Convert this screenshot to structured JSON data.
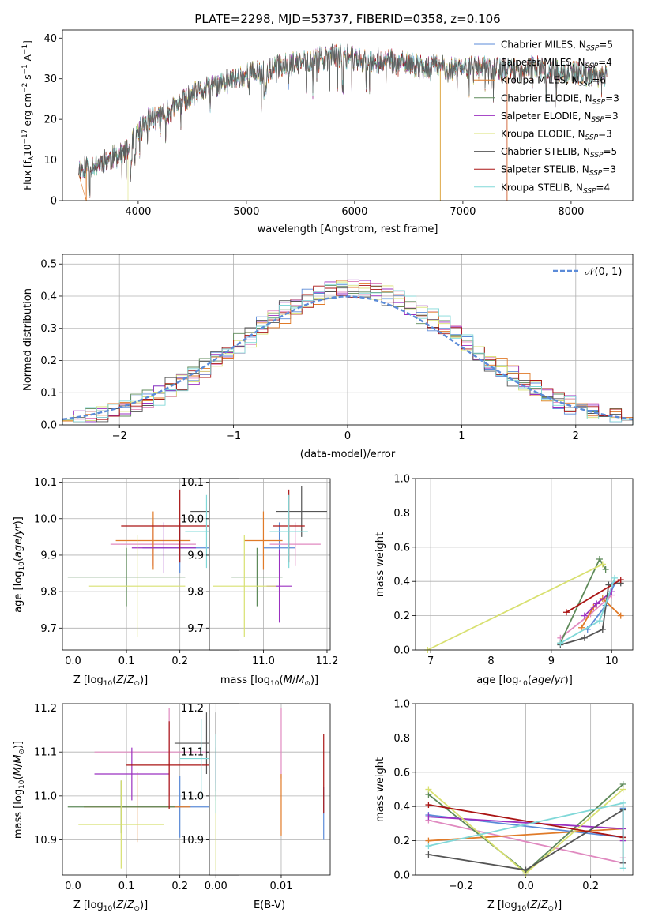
{
  "figure_title": "PLATE=2298, MJD=53737, FIBERID=0358, z=0.106",
  "colors": {
    "chabrier_miles": "#5b8bd8",
    "salpeter_miles": "#e08ac0",
    "kroupa_miles": "#e07a28",
    "chabrier_elodie": "#5e8a5a",
    "salpeter_elodie": "#9b30c0",
    "kroupa_elodie": "#d8e070",
    "chabrier_stelib": "#555555",
    "salpeter_stelib": "#aa1515",
    "kroupa_stelib": "#80d8d8",
    "normal": "#5b8bd8"
  },
  "chart_data": [
    {
      "id": "spectrum",
      "type": "line",
      "title": "PLATE=2298, MJD=53737, FIBERID=0358, z=0.106",
      "xlabel": "wavelength [Angstrom, rest frame]",
      "ylabel": "Flux [fλ10⁻¹⁷ erg cm⁻² s⁻¹ A⁻¹]",
      "xlim": [
        3300,
        8570
      ],
      "ylim": [
        0,
        42
      ],
      "xticks": [
        4000,
        5000,
        6000,
        7000,
        8000
      ],
      "yticks": [
        0,
        10,
        20,
        30,
        40
      ],
      "grid": false,
      "legend_position": "right",
      "legend": [
        "Chabrier MILES, N_SSP=5",
        "Salpeter MILES, N_SSP=4",
        "Kroupa MILES, N_SSP=6",
        "Chabrier ELODIE, N_SSP=3",
        "Salpeter ELODIE, N_SSP=3",
        "Kroupa ELODIE, N_SSP=3",
        "Chabrier STELIB, N_SSP=5",
        "Salpeter STELIB, N_SSP=3",
        "Kroupa STELIB, N_SSP=4"
      ],
      "continuum_x": [
        3450,
        3600,
        3700,
        3800,
        3900,
        4000,
        4100,
        4200,
        4300,
        4400,
        4500,
        4600,
        4700,
        4800,
        4900,
        5000,
        5100,
        5200,
        5300,
        5400,
        5500,
        5600,
        5700,
        5800,
        5900,
        6000,
        6100,
        6200,
        6300,
        6400,
        6500,
        6600,
        6700,
        6800,
        6900,
        7000,
        7100,
        7200,
        7300,
        7400,
        7500,
        7600,
        7700,
        7800,
        7900,
        8000,
        8100,
        8200,
        8330
      ],
      "continuum_y": [
        8,
        9,
        10,
        11,
        12,
        17,
        20,
        21,
        22,
        24,
        26,
        27,
        28,
        29,
        30,
        31,
        31.5,
        32,
        33,
        33.5,
        34,
        34.5,
        35,
        35.5,
        35.5,
        35,
        34.5,
        34.5,
        34.5,
        34,
        33.5,
        33,
        33,
        33,
        32.5,
        33,
        33,
        32.5,
        32.5,
        32.5,
        32,
        32.5,
        32.5,
        32,
        31.5,
        31.5,
        31,
        31,
        31
      ],
      "model_drops": [
        {
          "model": "Kroupa MILES",
          "wavelength": 3520
        },
        {
          "model": "Kroupa ELODIE",
          "wavelength": 3905
        },
        {
          "model": "Kroupa ELODIE",
          "wavelength": 6790
        },
        {
          "model": "Kroupa MILES",
          "wavelength": 6795
        },
        {
          "model": "Salpeter STELIB",
          "wavelength": 7400
        },
        {
          "model": "Kroupa MILES",
          "wavelength": 7410
        }
      ]
    },
    {
      "id": "residuals",
      "type": "line",
      "xlabel": "(data-model)/error",
      "ylabel": "Normed distribution",
      "xlim": [
        -2.5,
        2.5
      ],
      "ylim": [
        0,
        0.53
      ],
      "xticks": [
        -2,
        -1,
        0,
        1,
        2
      ],
      "yticks": [
        0.0,
        0.1,
        0.2,
        0.3,
        0.4,
        0.5
      ],
      "grid": true,
      "legend_position": "upper right",
      "legend": [
        "𝒩(0, 1)"
      ],
      "histogram": {
        "bin_width": 0.1,
        "amplitude_scale": 1.04,
        "series": [
          "Chabrier MILES",
          "Salpeter MILES",
          "Kroupa MILES",
          "Chabrier ELODIE",
          "Salpeter ELODIE",
          "Kroupa ELODIE",
          "Chabrier STELIB",
          "Salpeter STELIB",
          "Kroupa STELIB"
        ]
      },
      "normal_curve": {
        "mean": 0,
        "sigma": 1
      }
    },
    {
      "id": "age_vs_Z",
      "type": "scatter",
      "xlabel": "Z [log₁₀(Z/Z⊙)]",
      "ylabel": "age  [log₁₀(age/yr)]",
      "xlim": [
        -0.02,
        0.31
      ],
      "ylim": [
        9.64,
        10.11
      ],
      "xticks": [
        0.0,
        0.1,
        0.2
      ],
      "yticks": [
        9.7,
        9.8,
        9.9,
        10.0,
        10.1
      ],
      "grid": true,
      "points": [
        {
          "series": "Chabrier MILES",
          "x": 0.2,
          "y": 9.92,
          "xerr": 0.07,
          "yerr": 0.07
        },
        {
          "series": "Salpeter MILES",
          "x": 0.15,
          "y": 9.93,
          "xerr": 0.08,
          "yerr": 0.06
        },
        {
          "series": "Kroupa MILES",
          "x": 0.15,
          "y": 9.94,
          "xerr": 0.07,
          "yerr": 0.08
        },
        {
          "series": "Chabrier ELODIE",
          "x": 0.1,
          "y": 9.84,
          "xerr": 0.11,
          "yerr": 0.08
        },
        {
          "series": "Salpeter ELODIE",
          "x": 0.17,
          "y": 9.92,
          "xerr": 0.06,
          "yerr": 0.07
        },
        {
          "series": "Kroupa ELODIE",
          "x": 0.12,
          "y": 9.815,
          "xerr": 0.09,
          "yerr": 0.14
        },
        {
          "series": "Chabrier STELIB",
          "x": 0.26,
          "y": 10.02,
          "xerr": 0.04,
          "yerr": 0.07
        },
        {
          "series": "Salpeter STELIB",
          "x": 0.2,
          "y": 9.98,
          "xerr": 0.11,
          "yerr": 0.1
        },
        {
          "series": "Kroupa STELIB",
          "x": 0.25,
          "y": 9.965,
          "xerr": 0.04,
          "yerr": 0.1
        }
      ]
    },
    {
      "id": "age_vs_mass",
      "type": "scatter",
      "xlabel": "mass [log₁₀(M/M⊙)]",
      "xlim": [
        10.83,
        11.21
      ],
      "ylim": [
        9.64,
        10.11
      ],
      "xticks": [
        11.0,
        11.2
      ],
      "yticks": [
        9.7,
        9.8,
        9.9,
        10.0,
        10.1
      ],
      "grid": true,
      "points": [
        {
          "series": "Chabrier MILES",
          "x": 11.05,
          "y": 9.92,
          "xerr": 0.05,
          "yerr": 0.07
        },
        {
          "series": "Salpeter MILES",
          "x": 11.1,
          "y": 9.93,
          "xerr": 0.08,
          "yerr": 0.06
        },
        {
          "series": "Kroupa MILES",
          "x": 11.0,
          "y": 9.94,
          "xerr": 0.06,
          "yerr": 0.08
        },
        {
          "series": "Chabrier ELODIE",
          "x": 10.98,
          "y": 9.84,
          "xerr": 0.08,
          "yerr": 0.08
        },
        {
          "series": "Salpeter ELODIE",
          "x": 11.05,
          "y": 9.815,
          "xerr": 0.04,
          "yerr": 0.1
        },
        {
          "series": "Kroupa ELODIE",
          "x": 10.94,
          "y": 9.815,
          "xerr": 0.1,
          "yerr": 0.14
        },
        {
          "series": "Chabrier STELIB",
          "x": 11.12,
          "y": 10.02,
          "xerr": 0.08,
          "yerr": 0.07
        },
        {
          "series": "Salpeter STELIB",
          "x": 11.08,
          "y": 9.98,
          "xerr": 0.05,
          "yerr": 0.1
        },
        {
          "series": "Kroupa STELIB",
          "x": 11.08,
          "y": 9.965,
          "xerr": 0.06,
          "yerr": 0.1
        }
      ]
    },
    {
      "id": "weight_vs_age",
      "type": "line",
      "xlabel": "age  [log₁₀(age/yr)]",
      "ylabel": "mass weight",
      "xlim": [
        6.75,
        10.35
      ],
      "ylim": [
        0,
        1
      ],
      "xticks": [
        7,
        8,
        9,
        10
      ],
      "yticks": [
        0.0,
        0.2,
        0.4,
        0.6,
        0.8,
        1.0
      ],
      "grid": true,
      "series": [
        {
          "name": "Chabrier MILES",
          "x": [
            9.6,
            9.9,
            10.05
          ],
          "y": [
            0.12,
            0.26,
            0.39
          ]
        },
        {
          "name": "Salpeter MILES",
          "x": [
            9.15,
            9.65,
            10.0
          ],
          "y": [
            0.07,
            0.21,
            0.32
          ]
        },
        {
          "name": "Kroupa MILES",
          "x": [
            9.5,
            9.7,
            9.85,
            10.15
          ],
          "y": [
            0.13,
            0.25,
            0.3,
            0.2
          ]
        },
        {
          "name": "Chabrier ELODIE",
          "x": [
            9.15,
            9.8,
            9.9
          ],
          "y": [
            0.04,
            0.53,
            0.47
          ]
        },
        {
          "name": "Salpeter ELODIE",
          "x": [
            9.55,
            9.75,
            10.0
          ],
          "y": [
            0.2,
            0.27,
            0.34
          ]
        },
        {
          "name": "Kroupa ELODIE",
          "x": [
            6.95,
            9.85,
            9.85
          ],
          "y": [
            0.0,
            0.5,
            0.5
          ]
        },
        {
          "name": "Chabrier STELIB",
          "x": [
            9.15,
            9.55,
            9.85,
            9.95,
            10.15
          ],
          "y": [
            0.03,
            0.07,
            0.12,
            0.38,
            0.39
          ]
        },
        {
          "name": "Salpeter STELIB",
          "x": [
            9.25,
            10.15
          ],
          "y": [
            0.22,
            0.41
          ]
        },
        {
          "name": "Kroupa STELIB",
          "x": [
            9.15,
            9.8,
            10.05
          ],
          "y": [
            0.04,
            0.17,
            0.42
          ]
        }
      ]
    },
    {
      "id": "mass_vs_Z",
      "type": "scatter",
      "xlabel": "Z [log₁₀(Z/Z⊙)]",
      "ylabel": "mass [log₁₀(M/M⊙)]",
      "xlim": [
        -0.02,
        0.31
      ],
      "ylim": [
        10.82,
        11.21
      ],
      "xticks": [
        0.0,
        0.1,
        0.2
      ],
      "yticks": [
        10.9,
        11.0,
        11.1,
        11.2
      ],
      "grid": true,
      "points": [
        {
          "series": "Chabrier MILES",
          "x": 0.2,
          "y": 10.975,
          "xerr": 0.08,
          "yerr": 0.07
        },
        {
          "series": "Salpeter MILES",
          "x": 0.18,
          "y": 11.1,
          "xerr": 0.14,
          "yerr": 0.1
        },
        {
          "series": "Kroupa MILES",
          "x": 0.12,
          "y": 10.975,
          "xerr": 0.1,
          "yerr": 0.08
        },
        {
          "series": "Chabrier ELODIE",
          "x": 0.09,
          "y": 10.975,
          "xerr": 0.1,
          "yerr": 0.06
        },
        {
          "series": "Salpeter ELODIE",
          "x": 0.11,
          "y": 11.05,
          "xerr": 0.07,
          "yerr": 0.06
        },
        {
          "series": "Kroupa ELODIE",
          "x": 0.09,
          "y": 10.935,
          "xerr": 0.08,
          "yerr": 0.1
        },
        {
          "series": "Chabrier STELIB",
          "x": 0.25,
          "y": 11.12,
          "xerr": 0.06,
          "yerr": 0.07
        },
        {
          "series": "Salpeter STELIB",
          "x": 0.18,
          "y": 11.07,
          "xerr": 0.08,
          "yerr": 0.1
        },
        {
          "series": "Kroupa STELIB",
          "x": 0.24,
          "y": 11.085,
          "xerr": 0.04,
          "yerr": 0.09
        }
      ]
    },
    {
      "id": "mass_vs_ebv",
      "type": "scatter",
      "xlabel": "E(B-V)",
      "xlim": [
        -0.001,
        0.0175
      ],
      "ylim": [
        10.82,
        11.21
      ],
      "xticks": [
        0.0,
        0.01
      ],
      "yticks": [
        10.9,
        11.0,
        11.1,
        11.2
      ],
      "grid": true,
      "points": [
        {
          "series": "Chabrier MILES",
          "x": 0.0165,
          "y": 10.96,
          "yerr": 0.06
        },
        {
          "series": "Salpeter MILES",
          "x": 0.01,
          "y": 11.12,
          "yerr": 0.08
        },
        {
          "series": "Kroupa MILES",
          "x": 0.01,
          "y": 10.98,
          "yerr": 0.07
        },
        {
          "series": "Chabrier ELODIE",
          "x": 0.0,
          "y": 11.05,
          "yerr": 0.06
        },
        {
          "series": "Salpeter ELODIE",
          "x": 0.0,
          "y": 11.05,
          "yerr": 0.05
        },
        {
          "series": "Kroupa ELODIE",
          "x": 0.0,
          "y": 10.93,
          "yerr": 0.1
        },
        {
          "series": "Chabrier STELIB",
          "x": 0.0,
          "y": 11.1,
          "yerr": 0.09
        },
        {
          "series": "Salpeter STELIB",
          "x": 0.0165,
          "y": 11.05,
          "yerr": 0.09
        },
        {
          "series": "Kroupa STELIB",
          "x": 0.0,
          "y": 11.05,
          "yerr": 0.09
        }
      ]
    },
    {
      "id": "weight_vs_Z",
      "type": "line",
      "xlabel": "Z [log₁₀(Z/Z⊙)]",
      "ylabel": "mass weight",
      "xlim": [
        -0.34,
        0.33
      ],
      "ylim": [
        0,
        1
      ],
      "xticks": [
        -0.2,
        0.0,
        0.2
      ],
      "yticks": [
        0.0,
        0.2,
        0.4,
        0.6,
        0.8,
        1.0
      ],
      "grid": true,
      "series": [
        {
          "name": "Chabrier MILES",
          "x": [
            -0.3,
            0.3,
            0.3
          ],
          "y": [
            0.35,
            0.22,
            0.39
          ]
        },
        {
          "name": "Salpeter MILES",
          "x": [
            -0.3,
            0.3,
            0.3
          ],
          "y": [
            0.32,
            0.07,
            0.1
          ]
        },
        {
          "name": "Kroupa MILES",
          "x": [
            -0.3,
            0.3,
            0.3
          ],
          "y": [
            0.2,
            0.27,
            0.21
          ]
        },
        {
          "name": "Chabrier ELODIE",
          "x": [
            -0.3,
            0.0,
            0.3
          ],
          "y": [
            0.47,
            0.02,
            0.53
          ]
        },
        {
          "name": "Salpeter ELODIE",
          "x": [
            -0.3,
            0.3,
            0.3
          ],
          "y": [
            0.34,
            0.27,
            0.2
          ]
        },
        {
          "name": "Kroupa ELODIE",
          "x": [
            -0.3,
            0.0,
            0.3
          ],
          "y": [
            0.5,
            0.01,
            0.5
          ]
        },
        {
          "name": "Chabrier STELIB",
          "x": [
            -0.3,
            0.0,
            0.3,
            0.3
          ],
          "y": [
            0.12,
            0.03,
            0.38,
            0.07
          ]
        },
        {
          "name": "Salpeter STELIB",
          "x": [
            -0.3,
            0.3
          ],
          "y": [
            0.41,
            0.22
          ]
        },
        {
          "name": "Kroupa STELIB",
          "x": [
            -0.3,
            0.3,
            0.3
          ],
          "y": [
            0.17,
            0.42,
            0.04
          ]
        }
      ]
    }
  ]
}
